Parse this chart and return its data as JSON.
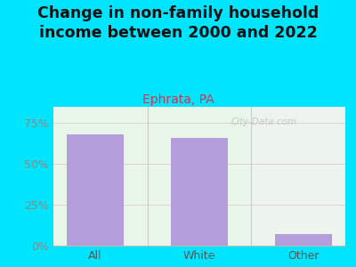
{
  "title": "Change in non-family household\nincome between 2000 and 2022",
  "subtitle": "Ephrata, PA",
  "categories": [
    "All",
    "White",
    "Other"
  ],
  "values": [
    68,
    66,
    7
  ],
  "bar_color": "#b39ddb",
  "title_fontsize": 12.5,
  "subtitle_fontsize": 10,
  "subtitle_color": "#cc3355",
  "title_color": "#111111",
  "tick_label_color": "#888888",
  "xtick_color": "#555555",
  "background_outer": "#00e5ff",
  "background_inner": "#e8f5e9",
  "ylim": [
    0,
    85
  ],
  "yticks": [
    0,
    25,
    50,
    75
  ],
  "ytick_labels": [
    "0%",
    "25%",
    "50%",
    "75%"
  ],
  "watermark": "City-Data.com"
}
